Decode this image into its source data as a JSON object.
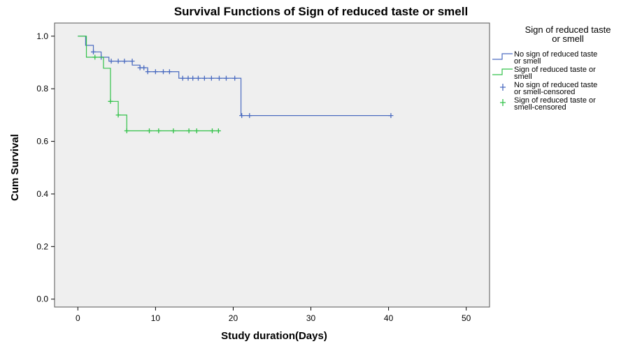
{
  "chart_data": {
    "type": "line",
    "title": "Survival Functions of Sign of reduced taste or smell",
    "xlabel": "Study duration(Days)",
    "ylabel": "Cum Survival",
    "xlim": [
      -3,
      53
    ],
    "ylim": [
      -0.03,
      1.05
    ],
    "x_ticks": [
      "0",
      "10",
      "20",
      "30",
      "40",
      "50"
    ],
    "y_ticks": [
      "0.0",
      "0.2",
      "0.4",
      "0.6",
      "0.8",
      "1.0"
    ],
    "grid": false,
    "legend": {
      "title_lines": [
        "Sign of reduced taste",
        "or smell"
      ],
      "placement": "right",
      "entries": [
        {
          "lines": [
            "No sign of reduced taste",
            "or smell"
          ],
          "symbol": "step",
          "color": "#4a6bc0"
        },
        {
          "lines": [
            "Sign of reduced taste or",
            "smell"
          ],
          "symbol": "step",
          "color": "#33c24a"
        },
        {
          "lines": [
            "No sign of reduced taste",
            "or smell-censored"
          ],
          "symbol": "plus",
          "color": "#4a6bc0"
        },
        {
          "lines": [
            "Sign of reduced taste or",
            "smell-censored"
          ],
          "symbol": "plus",
          "color": "#33c24a"
        }
      ]
    },
    "series": [
      {
        "name": "No sign of reduced taste or smell",
        "color": "#4a6bc0",
        "steps": [
          [
            0,
            1.0
          ],
          [
            1,
            0.965
          ],
          [
            2,
            0.94
          ],
          [
            3,
            0.92
          ],
          [
            4,
            0.905
          ],
          [
            7,
            0.89
          ],
          [
            8,
            0.88
          ],
          [
            9,
            0.865
          ],
          [
            13,
            0.84
          ],
          [
            21,
            0.698
          ],
          [
            40.3,
            0.698
          ]
        ],
        "censored": [
          [
            2,
            0.94
          ],
          [
            3,
            0.92
          ],
          [
            4.3,
            0.905
          ],
          [
            5.2,
            0.905
          ],
          [
            6,
            0.905
          ],
          [
            7,
            0.905
          ],
          [
            8,
            0.88
          ],
          [
            8.5,
            0.88
          ],
          [
            9,
            0.865
          ],
          [
            10,
            0.865
          ],
          [
            11,
            0.865
          ],
          [
            11.8,
            0.865
          ],
          [
            13.5,
            0.84
          ],
          [
            14.2,
            0.84
          ],
          [
            14.8,
            0.84
          ],
          [
            15.5,
            0.84
          ],
          [
            16.3,
            0.84
          ],
          [
            17.2,
            0.84
          ],
          [
            18.2,
            0.84
          ],
          [
            19.1,
            0.84
          ],
          [
            20.2,
            0.84
          ],
          [
            21.1,
            0.698
          ],
          [
            22.1,
            0.698
          ],
          [
            40.3,
            0.698
          ]
        ]
      },
      {
        "name": "Sign of reduced taste or smell",
        "color": "#33c24a",
        "steps": [
          [
            0,
            1.0
          ],
          [
            1.1,
            0.92
          ],
          [
            3.3,
            0.878
          ],
          [
            4.2,
            0.752
          ],
          [
            5.2,
            0.7
          ],
          [
            6.3,
            0.64
          ],
          [
            18.3,
            0.64
          ]
        ],
        "censored": [
          [
            2.2,
            0.92
          ],
          [
            4.2,
            0.752
          ],
          [
            5.2,
            0.7
          ],
          [
            6.3,
            0.64
          ],
          [
            9.2,
            0.64
          ],
          [
            10.4,
            0.64
          ],
          [
            12.3,
            0.64
          ],
          [
            14.3,
            0.64
          ],
          [
            15.3,
            0.64
          ],
          [
            17.3,
            0.64
          ],
          [
            18.1,
            0.64
          ]
        ]
      }
    ]
  }
}
